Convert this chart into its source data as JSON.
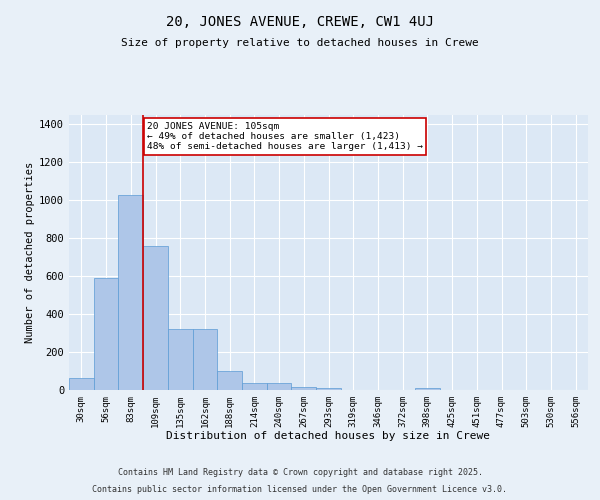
{
  "title_line1": "20, JONES AVENUE, CREWE, CW1 4UJ",
  "title_line2": "Size of property relative to detached houses in Crewe",
  "xlabel": "Distribution of detached houses by size in Crewe",
  "ylabel": "Number of detached properties",
  "categories": [
    "30sqm",
    "56sqm",
    "83sqm",
    "109sqm",
    "135sqm",
    "162sqm",
    "188sqm",
    "214sqm",
    "240sqm",
    "267sqm",
    "293sqm",
    "319sqm",
    "346sqm",
    "372sqm",
    "398sqm",
    "425sqm",
    "451sqm",
    "477sqm",
    "503sqm",
    "530sqm",
    "556sqm"
  ],
  "bar_heights": [
    65,
    590,
    1030,
    760,
    320,
    320,
    100,
    38,
    35,
    18,
    12,
    0,
    0,
    0,
    12,
    0,
    0,
    0,
    0,
    0,
    0
  ],
  "bar_color": "#aec6e8",
  "bar_edge_color": "#5b9bd5",
  "vline_x_index": 3,
  "vline_color": "#cc0000",
  "annotation_text": "20 JONES AVENUE: 105sqm\n← 49% of detached houses are smaller (1,423)\n48% of semi-detached houses are larger (1,413) →",
  "annotation_box_color": "#ffffff",
  "annotation_box_edge": "#cc0000",
  "ylim": [
    0,
    1450
  ],
  "yticks": [
    0,
    200,
    400,
    600,
    800,
    1000,
    1200,
    1400
  ],
  "bg_color": "#e8f0f8",
  "plot_bg_color": "#dce8f5",
  "grid_color": "#ffffff",
  "footer_line1": "Contains HM Land Registry data © Crown copyright and database right 2025.",
  "footer_line2": "Contains public sector information licensed under the Open Government Licence v3.0."
}
